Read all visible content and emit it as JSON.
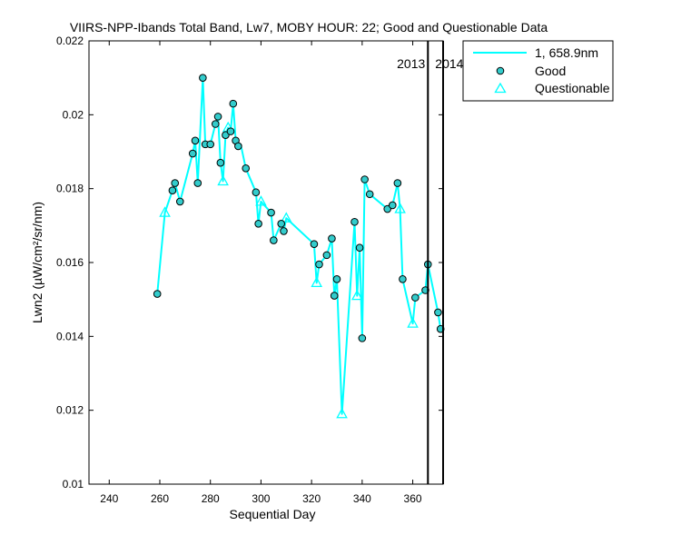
{
  "chart_data": {
    "type": "line",
    "title": "VIIRS-NPP-Ibands Total Band, Lw7, MOBY HOUR: 22;  Good and Questionable Data",
    "xlabel": "Sequential Day",
    "ylabel": "Lwn2 (µW/cm²/sr/nm)",
    "xlim": [
      232,
      372
    ],
    "ylim": [
      0.01,
      0.022
    ],
    "x_ticks": [
      240,
      260,
      280,
      300,
      320,
      340,
      360
    ],
    "y_ticks": [
      0.01,
      0.012,
      0.014,
      0.016,
      0.018,
      0.02,
      0.022
    ],
    "x_tick_labels": [
      "240",
      "260",
      "280",
      "300",
      "320",
      "340",
      "360"
    ],
    "y_tick_labels": [
      "0.01",
      "0.012",
      "0.014",
      "0.016",
      "0.018",
      "0.02",
      "0.022"
    ],
    "grid": false,
    "legend_position": "top-right",
    "line_color": "#00ffff",
    "marker_face_color": "#33cccc",
    "marker_edge_color": "#000000",
    "questionable_color": "#00ffff",
    "legend": {
      "line_label": "1, 658.9nm",
      "good_label": "Good",
      "questionable_label": "Questionable"
    },
    "year_markers": [
      {
        "x": 366,
        "left_label": "2013",
        "right_label": "2014"
      },
      {
        "x": 372,
        "left_label": "",
        "right_label": ""
      }
    ],
    "series": [
      {
        "name": "1, 658.9nm",
        "kind": "line",
        "x": [
          259,
          262,
          265,
          266,
          268,
          273,
          274,
          275,
          277,
          278,
          280,
          282,
          283,
          284,
          285,
          286,
          287,
          288,
          289,
          290,
          291,
          292,
          294,
          298,
          299,
          300,
          304,
          305,
          308,
          309,
          310,
          321,
          322,
          323,
          326,
          328,
          329,
          330,
          332,
          337,
          338,
          339,
          340,
          341,
          343,
          350,
          352,
          354,
          355,
          356,
          360,
          361,
          365,
          366,
          370,
          371
        ],
        "y": [
          0.01515,
          0.01735,
          0.01795,
          0.01815,
          0.01765,
          0.01895,
          0.0193,
          0.01815,
          0.021,
          0.0192,
          0.0192,
          0.01975,
          0.01995,
          0.0187,
          0.0182,
          0.01945,
          0.01965,
          0.01955,
          0.0203,
          0.0193,
          0.01915,
          0.0192,
          0.01855,
          0.0179,
          0.01705,
          0.01765,
          0.01735,
          0.0166,
          0.01705,
          0.01685,
          0.0172,
          0.0165,
          0.01545,
          0.01595,
          0.0162,
          0.01665,
          0.0151,
          0.01555,
          0.0119,
          0.0171,
          0.0151,
          0.0164,
          0.01395,
          0.01825,
          0.01785,
          0.01745,
          0.01755,
          0.01815,
          0.01745,
          0.01555,
          0.01435,
          0.01505,
          0.01525,
          0.01595,
          0.01465,
          0.0142
        ]
      },
      {
        "name": "Good",
        "kind": "marker-circle",
        "x": [
          259,
          265,
          266,
          268,
          273,
          274,
          275,
          277,
          278,
          280,
          282,
          283,
          284,
          286,
          288,
          289,
          290,
          291,
          294,
          298,
          299,
          304,
          305,
          308,
          309,
          321,
          323,
          326,
          328,
          329,
          330,
          337,
          339,
          340,
          341,
          343,
          350,
          352,
          354,
          356,
          361,
          365,
          366,
          370,
          371
        ],
        "y": [
          0.01515,
          0.01795,
          0.01815,
          0.01765,
          0.01895,
          0.0193,
          0.01815,
          0.021,
          0.0192,
          0.0192,
          0.01975,
          0.01995,
          0.0187,
          0.01945,
          0.01955,
          0.0203,
          0.0193,
          0.01915,
          0.01855,
          0.0179,
          0.01705,
          0.01735,
          0.0166,
          0.01705,
          0.01685,
          0.0165,
          0.01595,
          0.0162,
          0.01665,
          0.0151,
          0.01555,
          0.0171,
          0.0164,
          0.01395,
          0.01825,
          0.01785,
          0.01745,
          0.01755,
          0.01815,
          0.01555,
          0.01505,
          0.01525,
          0.01595,
          0.01465,
          0.0142
        ]
      },
      {
        "name": "Questionable",
        "kind": "marker-triangle",
        "x": [
          262,
          285,
          287,
          300,
          310,
          322,
          332,
          338,
          355,
          360
        ],
        "y": [
          0.01735,
          0.0182,
          0.01965,
          0.01765,
          0.0172,
          0.01545,
          0.0119,
          0.0151,
          0.01745,
          0.01435
        ]
      }
    ]
  }
}
